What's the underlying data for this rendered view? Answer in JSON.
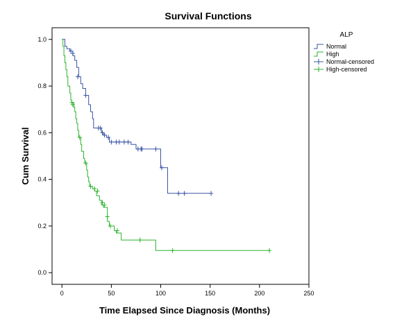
{
  "chart_data": {
    "type": "line",
    "step": true,
    "title": "Survival Functions",
    "xlabel": "Time Elapsed Since Diagnosis (Months)",
    "ylabel": "Cum Survival",
    "xlim": [
      -10,
      250
    ],
    "ylim": [
      -0.05,
      1.05
    ],
    "xticks": [
      0,
      50,
      100,
      150,
      200,
      250
    ],
    "yticks": [
      0.0,
      0.2,
      0.4,
      0.6,
      0.8,
      1.0
    ],
    "xtick_labels": [
      "0",
      "50",
      "100",
      "150",
      "200",
      "250"
    ],
    "ytick_labels": [
      "0.0",
      "0.2",
      "0.4",
      "0.6",
      "0.8",
      "1.0"
    ],
    "legend": {
      "title": "ALP",
      "placement": "right",
      "entries": [
        "Normal",
        "High",
        "Normal-censored",
        "High-censored"
      ]
    },
    "colors": {
      "normal": "#3a54a4",
      "high": "#2db32d"
    },
    "series": [
      {
        "name": "Normal",
        "steps": [
          [
            0,
            1.0
          ],
          [
            3,
            0.97
          ],
          [
            5,
            0.96
          ],
          [
            8,
            0.95
          ],
          [
            11,
            0.93
          ],
          [
            13,
            0.91
          ],
          [
            15,
            0.88
          ],
          [
            17,
            0.84
          ],
          [
            19,
            0.81
          ],
          [
            21,
            0.79
          ],
          [
            24,
            0.76
          ],
          [
            27,
            0.72
          ],
          [
            29,
            0.69
          ],
          [
            31,
            0.66
          ],
          [
            32,
            0.62
          ],
          [
            40,
            0.6
          ],
          [
            42,
            0.59
          ],
          [
            45,
            0.58
          ],
          [
            48,
            0.56
          ],
          [
            70,
            0.55
          ],
          [
            75,
            0.53
          ],
          [
            100,
            0.45
          ],
          [
            107,
            0.34
          ],
          [
            150,
            0.34
          ]
        ],
        "censored": [
          [
            9,
            0.95
          ],
          [
            11,
            0.94
          ],
          [
            16,
            0.84
          ],
          [
            24,
            0.76
          ],
          [
            37,
            0.62
          ],
          [
            39,
            0.62
          ],
          [
            41,
            0.6
          ],
          [
            43,
            0.59
          ],
          [
            47,
            0.58
          ],
          [
            50,
            0.56
          ],
          [
            55,
            0.56
          ],
          [
            58,
            0.56
          ],
          [
            63,
            0.56
          ],
          [
            67,
            0.56
          ],
          [
            77,
            0.53
          ],
          [
            80,
            0.53
          ],
          [
            81,
            0.53
          ],
          [
            95,
            0.53
          ],
          [
            101,
            0.45
          ],
          [
            118,
            0.34
          ],
          [
            124,
            0.34
          ],
          [
            151,
            0.34
          ]
        ]
      },
      {
        "name": "High",
        "steps": [
          [
            0,
            1.0
          ],
          [
            1,
            0.97
          ],
          [
            2,
            0.93
          ],
          [
            3,
            0.9
          ],
          [
            4,
            0.87
          ],
          [
            5,
            0.84
          ],
          [
            6,
            0.8
          ],
          [
            8,
            0.77
          ],
          [
            9,
            0.74
          ],
          [
            10,
            0.73
          ],
          [
            12,
            0.71
          ],
          [
            13,
            0.69
          ],
          [
            14,
            0.66
          ],
          [
            15,
            0.64
          ],
          [
            16,
            0.61
          ],
          [
            17,
            0.58
          ],
          [
            19,
            0.55
          ],
          [
            20,
            0.52
          ],
          [
            22,
            0.49
          ],
          [
            23,
            0.47
          ],
          [
            25,
            0.44
          ],
          [
            26,
            0.41
          ],
          [
            27,
            0.39
          ],
          [
            28,
            0.37
          ],
          [
            31,
            0.36
          ],
          [
            33,
            0.35
          ],
          [
            35,
            0.33
          ],
          [
            38,
            0.31
          ],
          [
            40,
            0.29
          ],
          [
            42,
            0.28
          ],
          [
            46,
            0.22
          ],
          [
            48,
            0.2
          ],
          [
            53,
            0.18
          ],
          [
            55,
            0.17
          ],
          [
            60,
            0.14
          ],
          [
            95,
            0.095
          ],
          [
            210,
            0.095
          ]
        ],
        "censored": [
          [
            10,
            0.73
          ],
          [
            11,
            0.72
          ],
          [
            18,
            0.58
          ],
          [
            24,
            0.47
          ],
          [
            29,
            0.37
          ],
          [
            33,
            0.36
          ],
          [
            36,
            0.35
          ],
          [
            41,
            0.3
          ],
          [
            43,
            0.29
          ],
          [
            46,
            0.24
          ],
          [
            49,
            0.2
          ],
          [
            56,
            0.18
          ],
          [
            79,
            0.14
          ],
          [
            112,
            0.095
          ],
          [
            210,
            0.095
          ]
        ]
      }
    ]
  }
}
